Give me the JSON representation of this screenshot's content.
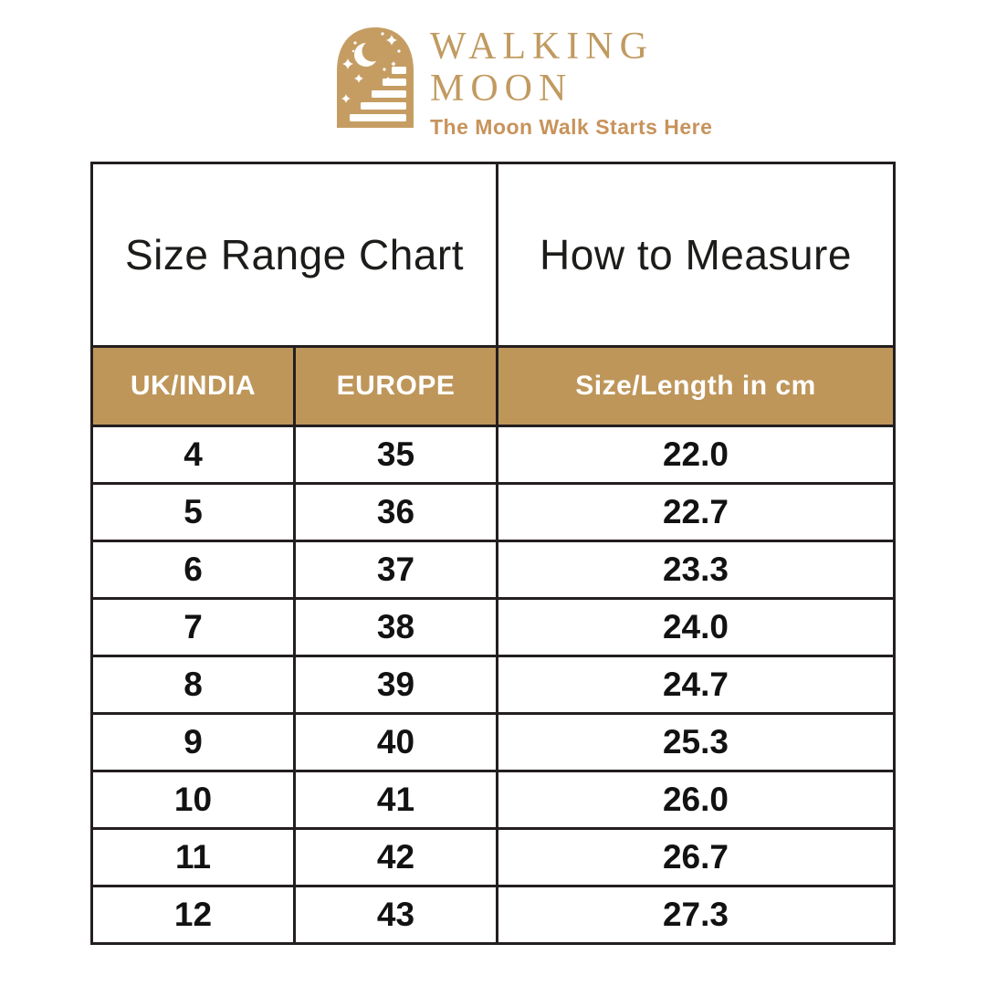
{
  "brand": {
    "name_line1": "WALKING",
    "name_line2": "MOON",
    "tagline": "The Moon Walk Starts Here",
    "logo_icon": "arch-moon-stairs-icon",
    "gold": "#C59D63"
  },
  "table": {
    "section_left": "Size Range Chart",
    "section_right": "How to Measure",
    "columns": [
      "UK/INDIA",
      "EUROPE",
      "Size/Length in cm"
    ],
    "rows": [
      [
        "4",
        "35",
        "22.0"
      ],
      [
        "5",
        "36",
        "22.7"
      ],
      [
        "6",
        "37",
        "23.3"
      ],
      [
        "7",
        "38",
        "24.0"
      ],
      [
        "8",
        "39",
        "24.7"
      ],
      [
        "9",
        "40",
        "25.3"
      ],
      [
        "10",
        "41",
        "26.0"
      ],
      [
        "11",
        "42",
        "26.7"
      ],
      [
        "12",
        "43",
        "27.3"
      ]
    ],
    "band_color": "#BE965A",
    "border_color": "#231F20"
  }
}
